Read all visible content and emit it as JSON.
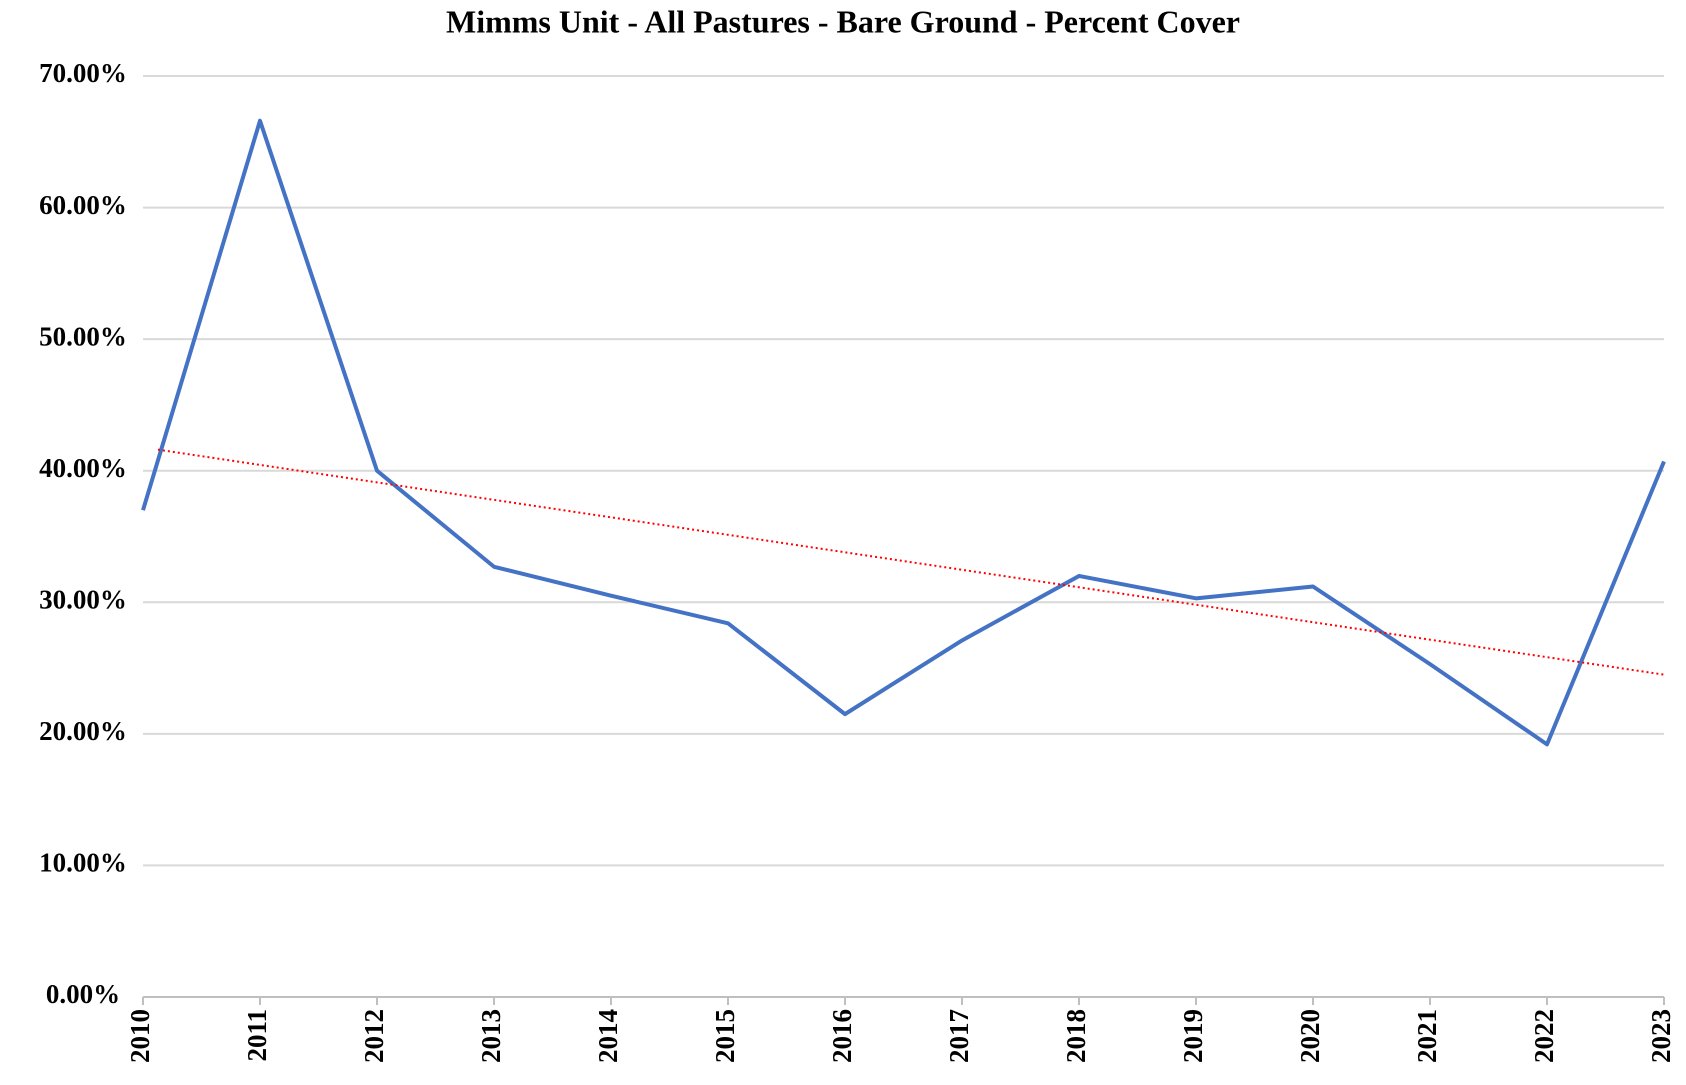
{
  "chart_data": {
    "type": "line",
    "title": "Mimms Unit - All Pastures - Bare Ground - Percent Cover",
    "categories": [
      "2010",
      "2011",
      "2012",
      "2013",
      "2014",
      "2015",
      "2016",
      "2017",
      "2018",
      "2019",
      "2020",
      "2021",
      "2022",
      "2023"
    ],
    "series": [
      {
        "color": "#4472c4",
        "values": [
          37.0,
          66.6,
          40.0,
          32.7,
          30.5,
          28.4,
          21.5,
          27.1,
          32.0,
          30.3,
          31.2,
          25.3,
          19.2,
          40.7
        ]
      }
    ],
    "trendline": {
      "color": "#ff0000",
      "values": [
        41.6,
        24.5
      ]
    },
    "ylim": [
      0,
      70
    ],
    "yticks": [
      {
        "value": 0,
        "label": "0.00%"
      },
      {
        "value": 10,
        "label": "10.00%"
      },
      {
        "value": 20,
        "label": "20.00%"
      },
      {
        "value": 30,
        "label": "30.00%"
      },
      {
        "value": 40,
        "label": "40.00%"
      },
      {
        "value": 50,
        "label": "50.00%"
      },
      {
        "value": 60,
        "label": "60.00%"
      },
      {
        "value": 70,
        "label": "70.00%"
      }
    ],
    "grid": true
  }
}
